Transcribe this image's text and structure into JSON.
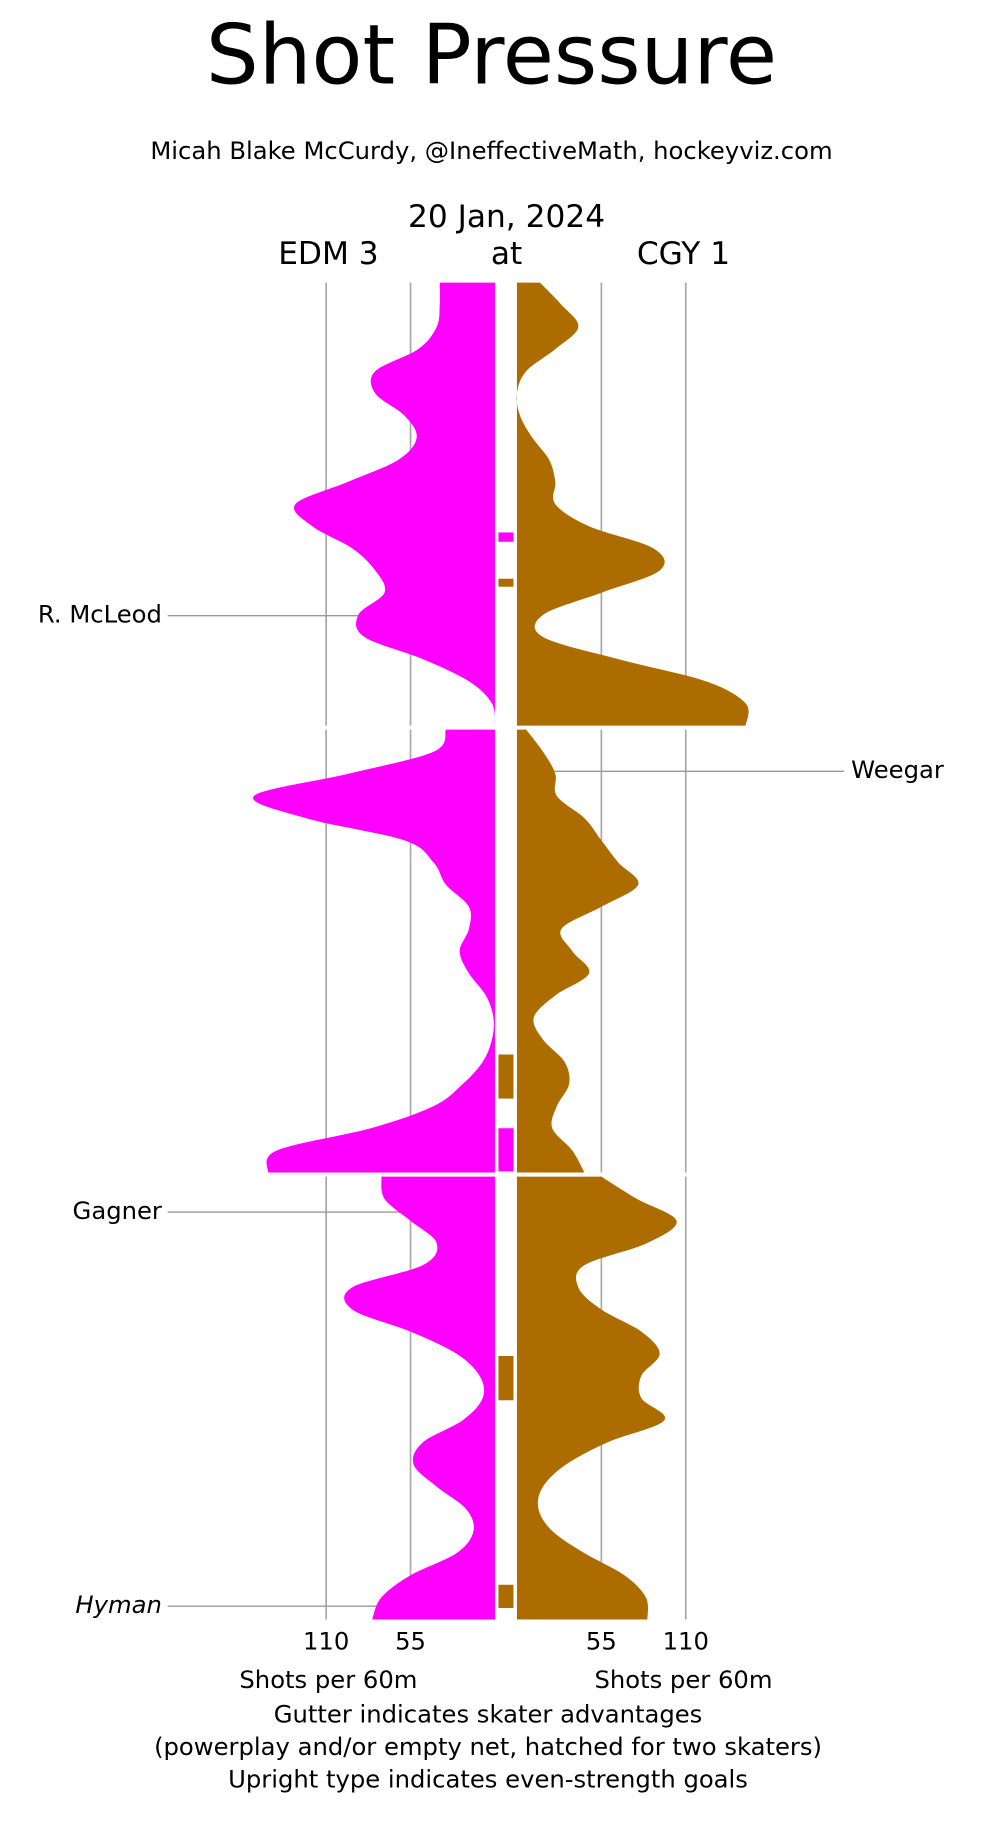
{
  "chart_data": {
    "type": "shot-pressure",
    "title": "Shot Pressure",
    "subtitle": "Micah Blake McCurdy, @IneffectiveMath, hockeyviz.com",
    "date": "20 Jan, 2024",
    "between": "at",
    "xlabel": "Shots per 60m",
    "notes": [
      "Gutter indicates skater advantages",
      "(powerplay and/or empty net, hatched for two skaters)",
      "Upright type indicates even-strength goals"
    ],
    "xticks": [
      55,
      110
    ],
    "x": [
      0,
      1,
      2,
      3,
      4,
      5,
      6,
      7,
      8,
      9,
      10,
      11,
      12,
      13,
      14,
      15,
      16,
      17,
      18,
      19,
      20,
      20,
      21,
      22,
      23,
      24,
      25,
      26,
      27,
      28,
      29,
      30,
      31,
      32,
      33,
      34,
      35,
      36,
      37,
      38,
      39,
      40,
      40,
      41,
      42,
      43,
      44,
      45,
      46,
      47,
      48,
      49,
      50,
      51,
      52,
      53,
      54,
      55,
      56,
      57,
      58,
      59,
      60
    ],
    "series": [
      {
        "name": "EDM 3",
        "color": "#ff00ff",
        "side": "left",
        "values": [
          36,
          36,
          38,
          50,
          78,
          78,
          59,
          51,
          63,
          96,
          130,
          119,
          93,
          78,
          72,
          89,
          85,
          47,
          17,
          2,
          0,
          32,
          40,
          96,
          157,
          123,
          59,
          40,
          32,
          17,
          17,
          23,
          17,
          6,
          1,
          2,
          8,
          21,
          40,
          81,
          142,
          148,
          74,
          72,
          55,
          38,
          47,
          93,
          93,
          55,
          25,
          10,
          8,
          21,
          47,
          53,
          38,
          19,
          14,
          25,
          55,
          74,
          80
        ],
        "gutter": [
          [
            11.28,
            11.7
          ],
          [
            38.0,
            39.95
          ]
        ],
        "goals": [
          {
            "name": "R. McLeod",
            "time": 15.04,
            "even_strength": true
          },
          {
            "name": "Gagner",
            "time": 41.6,
            "even_strength": true
          },
          {
            "name": "Hyman",
            "time": 59.4,
            "even_strength": false
          }
        ]
      },
      {
        "name": "CGY 1",
        "color": "#ad6c00",
        "side": "right",
        "values": [
          15,
          29,
          40,
          25,
          6,
          0,
          2,
          10,
          21,
          25,
          25,
          47,
          89,
          93,
          55,
          17,
          17,
          66,
          123,
          149,
          149,
          6,
          17,
          25,
          26,
          44,
          55,
          66,
          79,
          55,
          29,
          36,
          47,
          25,
          11,
          17,
          31,
          34,
          26,
          23,
          36,
          44,
          55,
          78,
          104,
          85,
          44,
          40,
          55,
          81,
          93,
          81,
          81,
          96,
          59,
          32,
          17,
          14,
          23,
          44,
          70,
          84,
          85
        ],
        "gutter": [
          [
            13.37,
            13.73
          ],
          [
            34.67,
            36.66
          ],
          [
            48.1,
            50.1
          ],
          [
            58.43,
            59.48
          ]
        ],
        "goals": [
          {
            "name": "Weegar",
            "time": 21.88,
            "even_strength": true
          }
        ]
      }
    ]
  }
}
